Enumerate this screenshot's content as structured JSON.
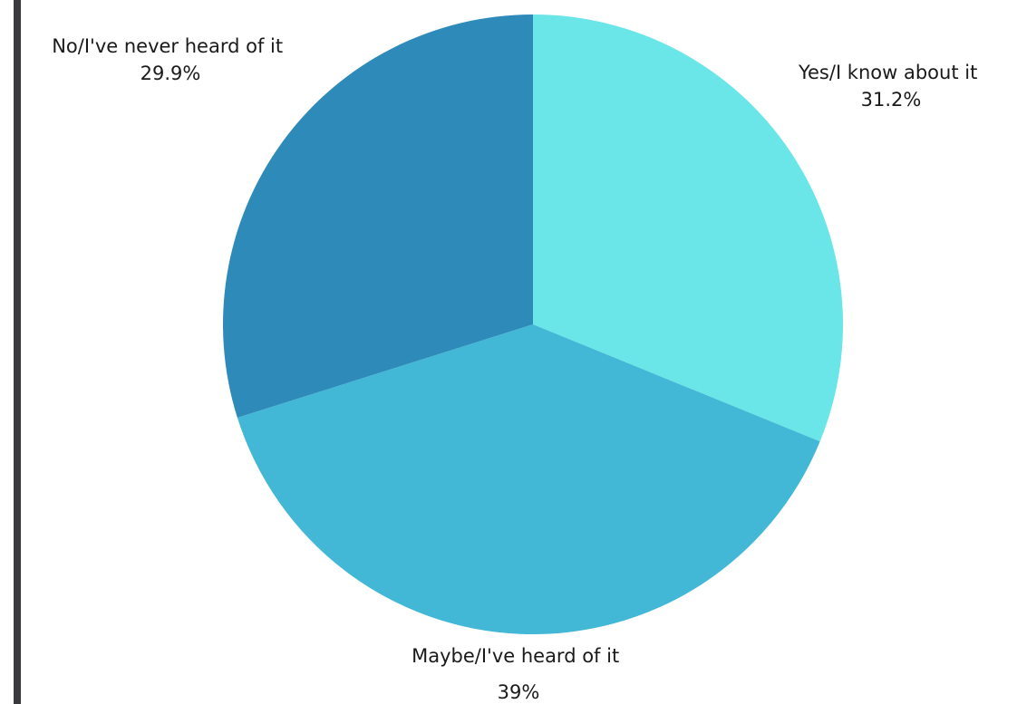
{
  "colors": {
    "left_bar": "#3a3a3c",
    "slice_yes": "#6ae5e8",
    "slice_maybe": "#42b7d6",
    "slice_no": "#2e8bb9"
  },
  "chart_data": {
    "type": "pie",
    "start_angle_deg": 0,
    "direction": "clockwise",
    "slices": [
      {
        "label": "Yes/I know about it",
        "value": 31.2,
        "value_label": "31.2%",
        "color": "#6ae5e8"
      },
      {
        "label": "Maybe/I've heard of it",
        "value": 39,
        "value_label": "39%",
        "color": "#42b7d6"
      },
      {
        "label": "No/I've never heard of it",
        "value": 29.9,
        "value_label": "29.9%",
        "color": "#2e8bb9"
      }
    ]
  }
}
